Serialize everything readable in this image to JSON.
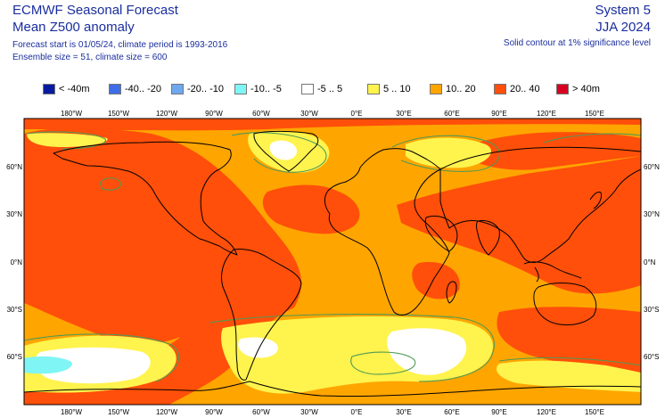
{
  "header": {
    "title1": "ECMWF Seasonal Forecast",
    "title2": "Mean Z500 anomaly",
    "forecast_info": "Forecast start is 01/05/24, climate period is 1993-2016",
    "ensemble_info": "Ensemble size = 51, climate size = 600",
    "system": "System 5",
    "period": "JJA 2024",
    "note": "Solid contour at 1% significance level"
  },
  "legend": [
    {
      "label": "< -40m",
      "color": "#0a1aa0"
    },
    {
      "label": "-40.. -20",
      "color": "#3f6de8"
    },
    {
      "label": "-20.. -10",
      "color": "#6fa8ef"
    },
    {
      "label": "-10.. -5",
      "color": "#7ff5f5"
    },
    {
      "label": "-5 .. 5",
      "color": "#ffffff"
    },
    {
      "label": "5 .. 10",
      "color": "#fff34d"
    },
    {
      "label": "10.. 20",
      "color": "#ffa500"
    },
    {
      "label": "20.. 40",
      "color": "#ff4f0a"
    },
    {
      "label": "> 40m",
      "color": "#d7001e"
    }
  ],
  "axes": {
    "lon_labels": [
      "180°W",
      "150°W",
      "120°W",
      "90°W",
      "60°W",
      "30°W",
      "0°E",
      "30°E",
      "60°E",
      "90°E",
      "120°E",
      "150°E"
    ],
    "lat_labels": [
      "60°N",
      "30°N",
      "0°N",
      "30°S",
      "60°S"
    ]
  },
  "colors": {
    "background": "#ffa500",
    "strong": "#ff4f0a",
    "weak": "#fff34d",
    "neutral": "#ffffff",
    "negative": "#7ff5f5",
    "contour": "#4f9a55",
    "coast": "#000000"
  }
}
